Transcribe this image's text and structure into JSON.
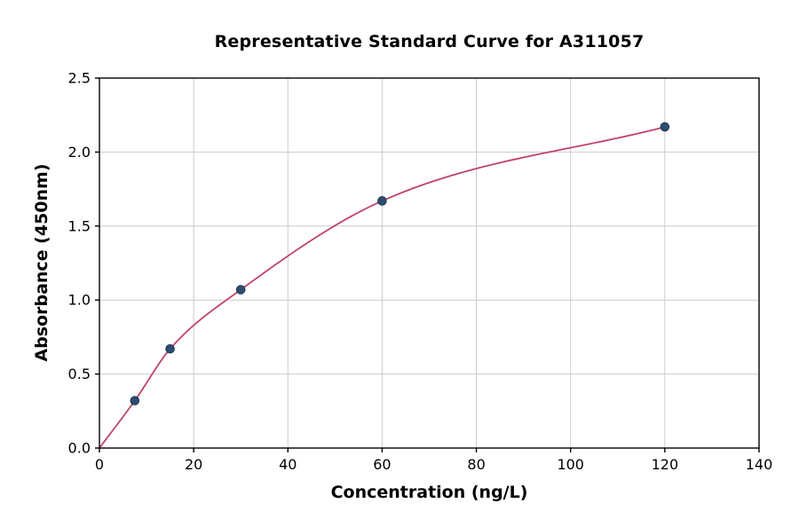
{
  "chart_data": {
    "type": "scatter",
    "title": "Representative Standard Curve for A311057",
    "xlabel": "Concentration (ng/L)",
    "ylabel": "Absorbance (450nm)",
    "xlim": [
      0,
      140
    ],
    "ylim": [
      0,
      2.5
    ],
    "x_tick_values": [
      0,
      20,
      40,
      60,
      80,
      100,
      120,
      140
    ],
    "x_tick_labels": [
      "0",
      "20",
      "40",
      "60",
      "80",
      "100",
      "120",
      "140"
    ],
    "y_tick_values": [
      0.0,
      0.5,
      1.0,
      1.5,
      2.0,
      2.5
    ],
    "y_tick_labels": [
      "0.0",
      "0.5",
      "1.0",
      "1.5",
      "2.0",
      "2.5"
    ],
    "grid": true,
    "legend": "none",
    "series": [
      {
        "name": "fit-curve",
        "type": "line",
        "smooth": true,
        "x": [
          0,
          7.5,
          15,
          30,
          60,
          120
        ],
        "y": [
          0.0,
          0.32,
          0.67,
          1.07,
          1.67,
          2.17
        ],
        "color": "#c0436c"
      },
      {
        "name": "standard-points",
        "type": "scatter",
        "x": [
          7.5,
          15,
          30,
          60,
          120
        ],
        "y": [
          0.32,
          0.67,
          1.07,
          1.67,
          2.17
        ],
        "color": "#2e4d6e",
        "edge_color": "#203a55"
      }
    ],
    "colors": {
      "grid": "#cccccc",
      "axis": "#000000",
      "background": "#ffffff"
    }
  }
}
